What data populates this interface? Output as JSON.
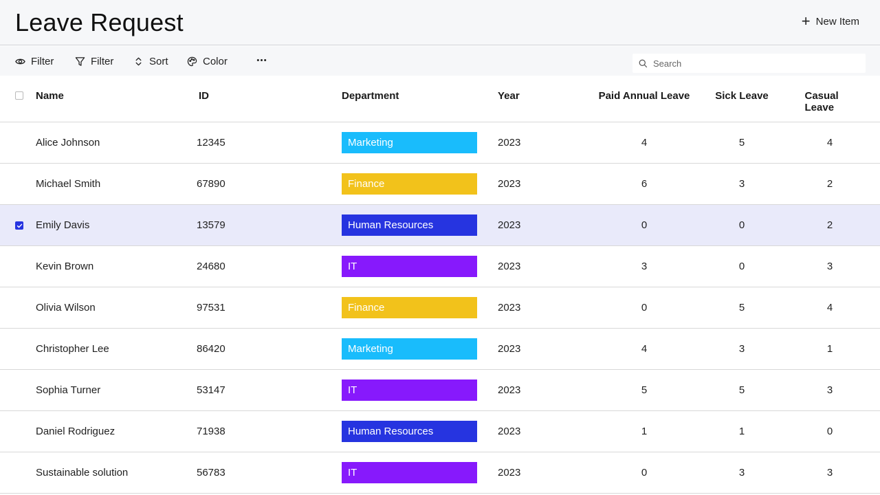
{
  "header": {
    "title": "Leave Request",
    "new_item_label": "New Item"
  },
  "toolbar": {
    "view_filter_label": "Filter",
    "filter_label": "Filter",
    "sort_label": "Sort",
    "color_label": "Color",
    "search_placeholder": "Search"
  },
  "table": {
    "columns": [
      "Name",
      "ID",
      "Department",
      "Year",
      "Paid Annual Leave",
      "Sick Leave",
      "Casual Leave"
    ],
    "rows": [
      {
        "name": "Alice Johnson",
        "id": "12345",
        "department": "Marketing",
        "year": "2023",
        "paid": "4",
        "sick": "5",
        "casual": "4",
        "selected": false
      },
      {
        "name": "Michael Smith",
        "id": "67890",
        "department": "Finance",
        "year": "2023",
        "paid": "6",
        "sick": "3",
        "casual": "2",
        "selected": false
      },
      {
        "name": "Emily Davis",
        "id": "13579",
        "department": "Human Resources",
        "year": "2023",
        "paid": "0",
        "sick": "0",
        "casual": "2",
        "selected": true
      },
      {
        "name": "Kevin Brown",
        "id": "24680",
        "department": "IT",
        "year": "2023",
        "paid": "3",
        "sick": "0",
        "casual": "3",
        "selected": false
      },
      {
        "name": "Olivia Wilson",
        "id": "97531",
        "department": "Finance",
        "year": "2023",
        "paid": "0",
        "sick": "5",
        "casual": "4",
        "selected": false
      },
      {
        "name": "Christopher Lee",
        "id": "86420",
        "department": "Marketing",
        "year": "2023",
        "paid": "4",
        "sick": "3",
        "casual": "1",
        "selected": false
      },
      {
        "name": "Sophia Turner",
        "id": "53147",
        "department": "IT",
        "year": "2023",
        "paid": "5",
        "sick": "5",
        "casual": "3",
        "selected": false
      },
      {
        "name": "Daniel Rodriguez",
        "id": "71938",
        "department": "Human Resources",
        "year": "2023",
        "paid": "1",
        "sick": "1",
        "casual": "0",
        "selected": false
      },
      {
        "name": "Sustainable solution",
        "id": "56783",
        "department": "IT",
        "year": "2023",
        "paid": "0",
        "sick": "3",
        "casual": "3",
        "selected": false
      }
    ]
  },
  "department_colors": {
    "Marketing": "#19bcfc",
    "Finance": "#f2c21b",
    "Human Resources": "#2634e0",
    "IT": "#8719fc"
  },
  "selection_color": "#e9eafa"
}
